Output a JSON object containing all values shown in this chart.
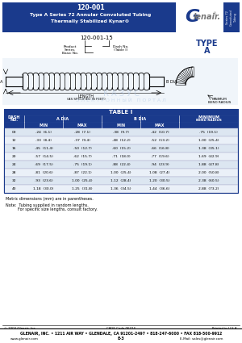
{
  "title_line1": "120-001",
  "title_line2": "Type A Series 72 Annular Convoluted Tubing",
  "title_line3": "Thermally Stabilized Kynar®",
  "header_bg": "#1a3a8c",
  "header_text_color": "#ffffff",
  "part_number_example": "120-001-15",
  "type_color": "#1a3a8c",
  "table_title": "TABLE I",
  "table_data": [
    [
      "09",
      ".24  (6.1)",
      ".28  (7.1)",
      ".38  (9.7)",
      ".42  (10.7)",
      ".75  (19.1)"
    ],
    [
      "12",
      ".33  (8.4)",
      ".37  (9.4)",
      ".48  (12.2)",
      ".52  (13.2)",
      "1.00  (25.4)"
    ],
    [
      "16",
      ".45  (11.4)",
      ".50  (12.7)",
      ".60  (15.2)",
      ".66  (16.8)",
      "1.38  (35.1)"
    ],
    [
      "20",
      ".57  (14.5)",
      ".62  (15.7)",
      ".71  (18.0)",
      ".77  (19.6)",
      "1.69  (42.9)"
    ],
    [
      "24",
      ".69  (17.5)",
      ".75  (19.1)",
      ".88  (22.4)",
      ".94  (23.9)",
      "1.88  (47.8)"
    ],
    [
      "28",
      ".81  (20.6)",
      ".87  (22.1)",
      "1.00  (25.4)",
      "1.08  (27.4)",
      "2.00  (50.8)"
    ],
    [
      "32",
      ".93  (23.6)",
      "1.00  (25.4)",
      "1.12  (28.4)",
      "1.20  (30.5)",
      "2.38  (60.5)"
    ],
    [
      "40",
      "1.18  (30.0)",
      "1.25  (31.8)",
      "1.36  (34.5)",
      "1.44  (36.6)",
      "2.88  (73.2)"
    ]
  ],
  "table_header_bg": "#1a3a8c",
  "table_row_alt": "#dce6f1",
  "table_row_normal": "#eaf0f8",
  "note1": "Metric dimensions (mm) are in parentheses.",
  "note2": "Note:  Tubing supplied in random lengths.",
  "note3": "          For specific size lengths, consult factory.",
  "footer_left": "© 2003 Glenair, Inc.",
  "footer_center": "CAGE Code 06324",
  "footer_right": "Printed in U.S.A.",
  "footer_company": "GLENAIR, INC. • 1211 AIR WAY • GLENDALE, CA 91201-2497 • 818-247-6000 • FAX 818-500-9912",
  "footer_page": "E-3",
  "footer_web": "www.glenair.com",
  "footer_email": "E-Mail: sales@glenair.com",
  "bg_color": "#ffffff",
  "watermark_color": "#b8cce4"
}
